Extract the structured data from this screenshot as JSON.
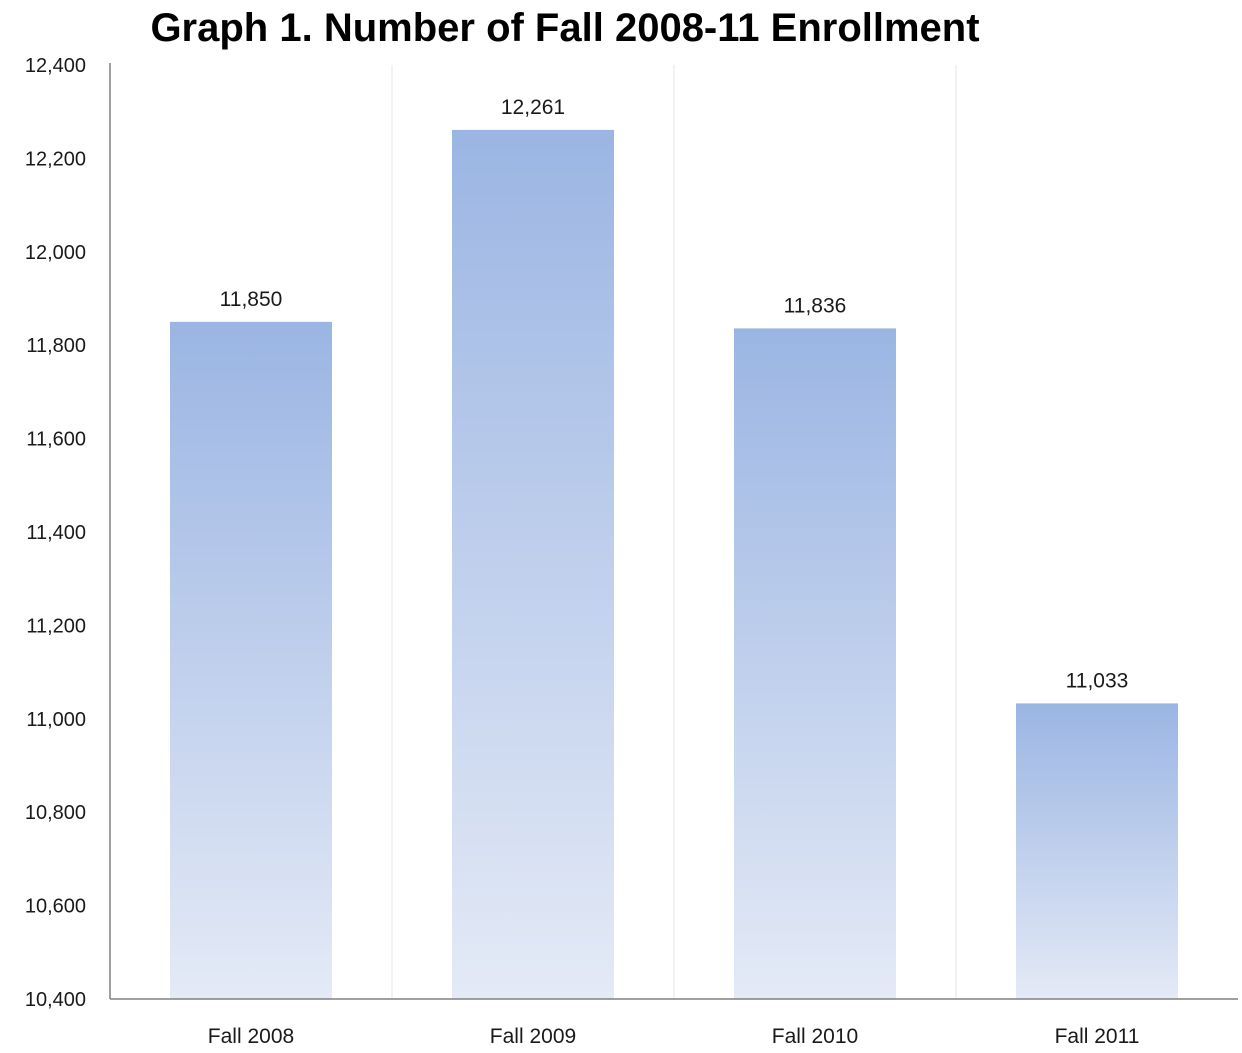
{
  "chart_data": {
    "type": "bar",
    "title": "Graph 1. Number of Fall 2008-11 Enrollment",
    "xlabel": "",
    "ylabel": "",
    "categories": [
      "Fall 2008",
      "Fall 2009",
      "Fall 2010",
      "Fall 2011"
    ],
    "values": [
      11850,
      12261,
      11836,
      11033
    ],
    "data_labels": [
      "11,850",
      "12,261",
      "11,836",
      "11,033"
    ],
    "ylim": [
      10400,
      12400
    ],
    "yticks": [
      10400,
      10600,
      10800,
      11000,
      11200,
      11400,
      11600,
      11800,
      12000,
      12200,
      12400
    ],
    "ytick_labels": [
      "10,400",
      "10,600",
      "10,800",
      "11,000",
      "11,200",
      "11,400",
      "11,600",
      "11,800",
      "12,000",
      "12,200",
      "12,400"
    ],
    "grid": "vertical category separators",
    "legend": "none",
    "colors": {
      "bar_top": "#9bb5e3",
      "bar_bottom": "#e4eaf6",
      "axis": "#808080",
      "grid": "#e6e6e6",
      "text": "#1a1a1a"
    }
  }
}
